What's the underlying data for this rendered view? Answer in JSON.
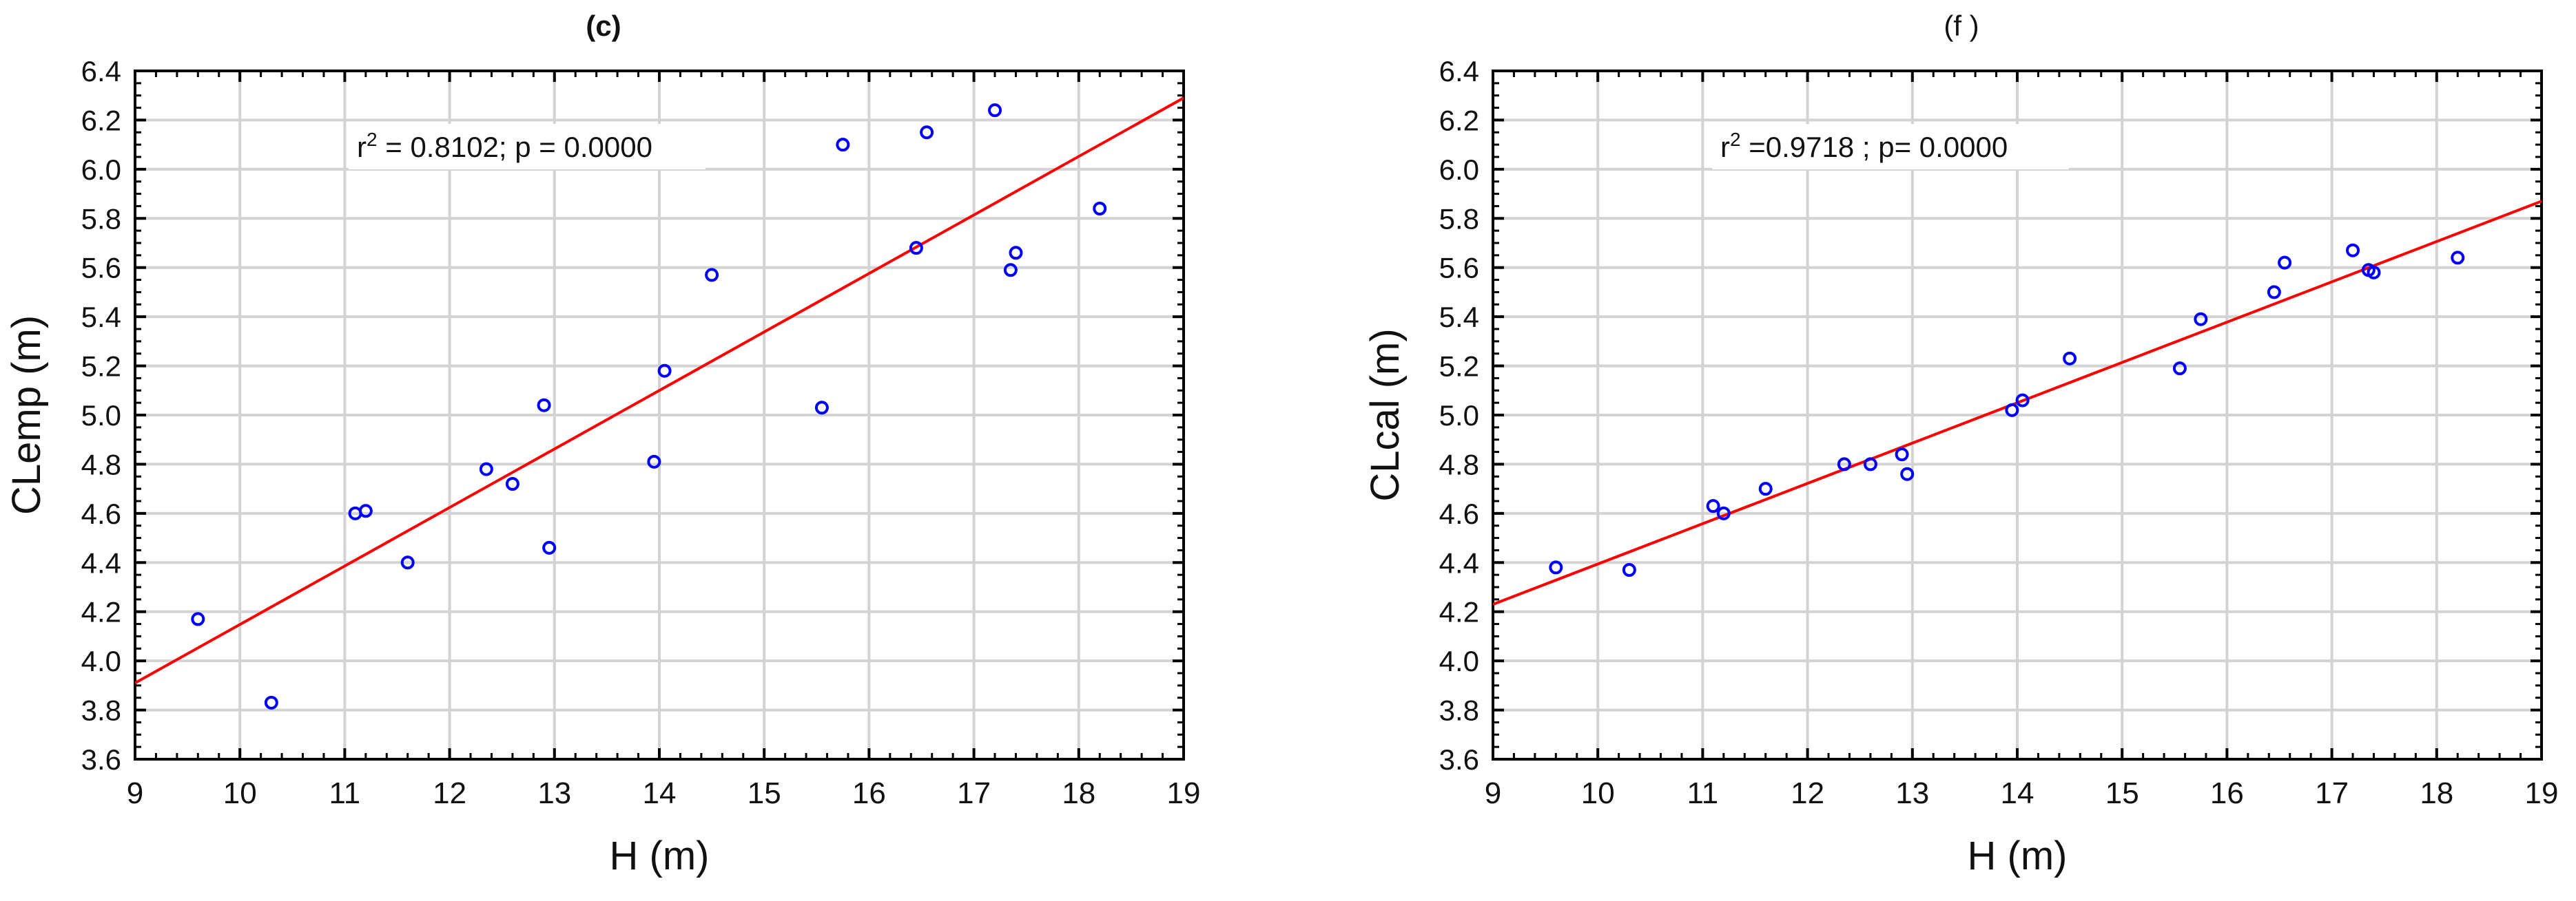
{
  "colors": {
    "points": "#0000ff",
    "fit_line": "#ff0000",
    "grid": "#d3d3d3",
    "axes": "#000000",
    "background": "#ffffff"
  },
  "chart_data": [
    {
      "type": "scatter",
      "title": "(c)",
      "xlabel": "H (m)",
      "ylabel": "CLemp (m)",
      "xlim": [
        9,
        19
      ],
      "ylim": [
        3.6,
        6.4
      ],
      "xticks": [
        9,
        10,
        11,
        12,
        13,
        14,
        15,
        16,
        17,
        18,
        19
      ],
      "yticks": [
        3.6,
        3.8,
        4.0,
        4.2,
        4.4,
        4.6,
        4.8,
        5.0,
        5.2,
        5.4,
        5.6,
        5.8,
        6.0,
        6.2,
        6.4
      ],
      "grid": true,
      "annotation": {
        "prefix": "r",
        "superscript": "2",
        "suffix": " = 0.8102;  p = 0.0000",
        "position": "top-left"
      },
      "fit_line": {
        "x": [
          9,
          19
        ],
        "y": [
          3.91,
          6.29
        ]
      },
      "points": [
        {
          "x": 9.6,
          "y": 4.17
        },
        {
          "x": 10.3,
          "y": 3.83
        },
        {
          "x": 11.1,
          "y": 4.6
        },
        {
          "x": 11.2,
          "y": 4.61
        },
        {
          "x": 11.6,
          "y": 4.4
        },
        {
          "x": 12.35,
          "y": 4.78
        },
        {
          "x": 12.6,
          "y": 4.72
        },
        {
          "x": 12.9,
          "y": 5.04
        },
        {
          "x": 12.95,
          "y": 4.46
        },
        {
          "x": 13.95,
          "y": 4.81
        },
        {
          "x": 14.05,
          "y": 5.18
        },
        {
          "x": 14.5,
          "y": 5.57
        },
        {
          "x": 15.55,
          "y": 5.03
        },
        {
          "x": 15.75,
          "y": 6.1
        },
        {
          "x": 16.45,
          "y": 5.68
        },
        {
          "x": 16.55,
          "y": 6.15
        },
        {
          "x": 17.2,
          "y": 6.24
        },
        {
          "x": 17.35,
          "y": 5.59
        },
        {
          "x": 17.4,
          "y": 5.66
        },
        {
          "x": 18.2,
          "y": 5.84
        }
      ]
    },
    {
      "type": "scatter",
      "title": "(f )",
      "xlabel": "H (m)",
      "ylabel": "CLcal (m)",
      "xlim": [
        9,
        19
      ],
      "ylim": [
        3.6,
        6.4
      ],
      "xticks": [
        9,
        10,
        11,
        12,
        13,
        14,
        15,
        16,
        17,
        18,
        19
      ],
      "yticks": [
        3.6,
        3.8,
        4.0,
        4.2,
        4.4,
        4.6,
        4.8,
        5.0,
        5.2,
        5.4,
        5.6,
        5.8,
        6.0,
        6.2,
        6.4
      ],
      "grid": true,
      "annotation": {
        "prefix": "r",
        "superscript": "2",
        "suffix": " =0.9718 ;  p= 0.0000",
        "position": "top-left"
      },
      "fit_line": {
        "x": [
          9,
          19
        ],
        "y": [
          4.23,
          5.87
        ]
      },
      "points": [
        {
          "x": 9.6,
          "y": 4.38
        },
        {
          "x": 10.3,
          "y": 4.37
        },
        {
          "x": 11.1,
          "y": 4.63
        },
        {
          "x": 11.2,
          "y": 4.6
        },
        {
          "x": 11.6,
          "y": 4.7
        },
        {
          "x": 12.35,
          "y": 4.8
        },
        {
          "x": 12.6,
          "y": 4.8
        },
        {
          "x": 12.9,
          "y": 4.84
        },
        {
          "x": 12.95,
          "y": 4.76
        },
        {
          "x": 13.95,
          "y": 5.02
        },
        {
          "x": 14.05,
          "y": 5.06
        },
        {
          "x": 14.5,
          "y": 5.23
        },
        {
          "x": 15.55,
          "y": 5.19
        },
        {
          "x": 15.75,
          "y": 5.39
        },
        {
          "x": 16.45,
          "y": 5.5
        },
        {
          "x": 16.55,
          "y": 5.62
        },
        {
          "x": 17.2,
          "y": 5.67
        },
        {
          "x": 17.35,
          "y": 5.59
        },
        {
          "x": 17.4,
          "y": 5.58
        },
        {
          "x": 18.2,
          "y": 5.64
        }
      ]
    }
  ]
}
